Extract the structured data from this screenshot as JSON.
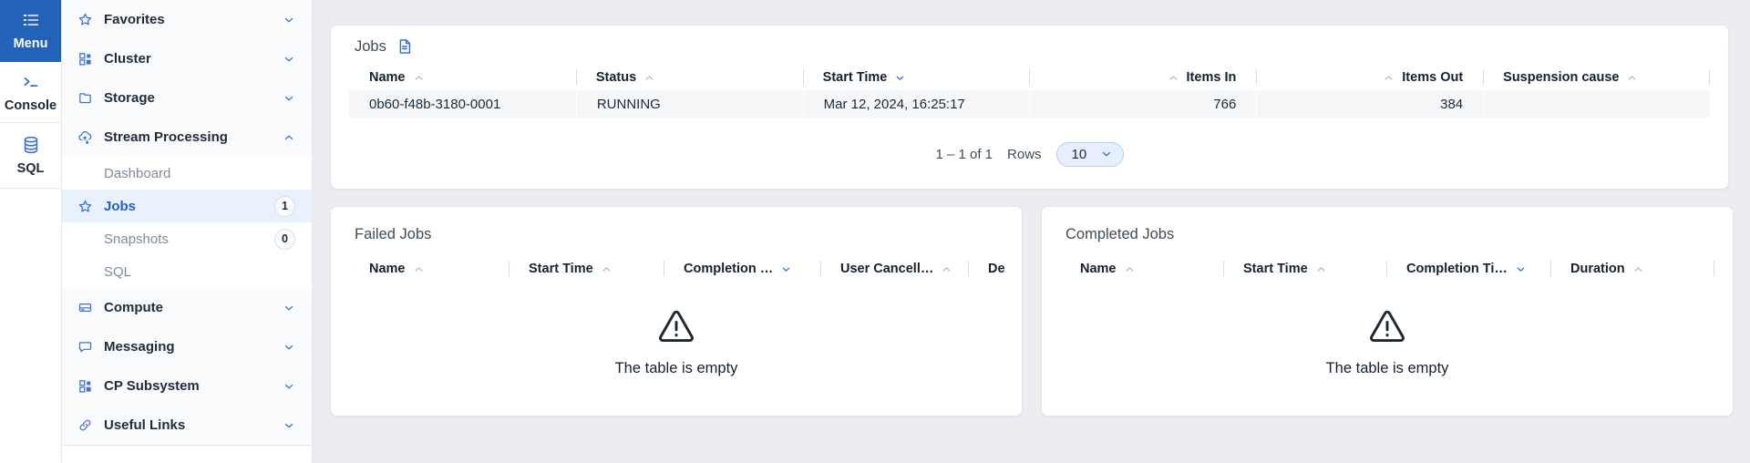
{
  "colors": {
    "accent": "#2f6bd8",
    "rail_active_bg": "#2262b9",
    "active_item_bg": "#e9f1fd"
  },
  "rail": {
    "items": [
      {
        "id": "menu",
        "label": "Menu",
        "icon": "menu-icon",
        "active": true
      },
      {
        "id": "console",
        "label": "Console",
        "icon": "console-icon",
        "active": false
      },
      {
        "id": "sql",
        "label": "SQL",
        "icon": "database-icon",
        "active": false
      }
    ]
  },
  "sidebar": {
    "items": [
      {
        "id": "favorites",
        "label": "Favorites",
        "icon": "star-icon",
        "chevron": "down"
      },
      {
        "id": "cluster",
        "label": "Cluster",
        "icon": "grid-icon",
        "chevron": "down"
      },
      {
        "id": "storage",
        "label": "Storage",
        "icon": "folder-icon",
        "chevron": "down"
      },
      {
        "id": "stream-processing",
        "label": "Stream Processing",
        "icon": "cloud-sync-icon",
        "chevron": "up",
        "children": [
          {
            "id": "dashboard",
            "label": "Dashboard"
          },
          {
            "id": "jobs",
            "label": "Jobs",
            "icon": "star-icon",
            "badge": "1",
            "active": true
          },
          {
            "id": "snapshots",
            "label": "Snapshots",
            "badge": "0"
          },
          {
            "id": "sql-sub",
            "label": "SQL"
          }
        ]
      },
      {
        "id": "compute",
        "label": "Compute",
        "icon": "drive-icon",
        "chevron": "down"
      },
      {
        "id": "messaging",
        "label": "Messaging",
        "icon": "chat-icon",
        "chevron": "down"
      },
      {
        "id": "cp-subsystem",
        "label": "CP Subsystem",
        "icon": "grid-icon",
        "chevron": "down"
      },
      {
        "id": "useful-links",
        "label": "Useful Links",
        "icon": "link-icon",
        "chevron": "down"
      }
    ]
  },
  "jobs_panel": {
    "title": "Jobs",
    "title_icon": "document-icon",
    "columns": [
      {
        "label": "Name",
        "caret": "up",
        "active": false
      },
      {
        "label": "Status",
        "caret": "up",
        "active": false
      },
      {
        "label": "Start Time",
        "caret": "down",
        "active": true
      },
      {
        "label": "Items In",
        "caret": "up",
        "active": false,
        "align": "right",
        "caret_before": true
      },
      {
        "label": "Items Out",
        "caret": "up",
        "active": false,
        "align": "right",
        "caret_before": true
      },
      {
        "label": "Suspension cause",
        "caret": "up",
        "active": false
      }
    ],
    "rows": [
      [
        "0b60-f48b-3180-0001",
        "RUNNING",
        "Mar 12, 2024, 16:25:17",
        "766",
        "384",
        ""
      ]
    ],
    "pagination": {
      "range": "1 – 1 of 1",
      "rows_label": "Rows",
      "page_size": "10"
    }
  },
  "failed_jobs_panel": {
    "title": "Failed Jobs",
    "columns": [
      {
        "label": "Name",
        "caret": "up",
        "active": false
      },
      {
        "label": "Start Time",
        "caret": "up",
        "active": false
      },
      {
        "label": "Completion …",
        "caret": "down",
        "active": true
      },
      {
        "label": "User Cancell…",
        "caret": "up",
        "active": false
      },
      {
        "label": "De",
        "caret": null,
        "active": false
      }
    ],
    "rows": [],
    "empty_text": "The table is empty"
  },
  "completed_jobs_panel": {
    "title": "Completed Jobs",
    "columns": [
      {
        "label": "Name",
        "caret": "up",
        "active": false
      },
      {
        "label": "Start Time",
        "caret": "up",
        "active": false
      },
      {
        "label": "Completion Ti…",
        "caret": "down",
        "active": true
      },
      {
        "label": "Duration",
        "caret": "up",
        "active": false
      }
    ],
    "rows": [],
    "empty_text": "The table is empty"
  }
}
